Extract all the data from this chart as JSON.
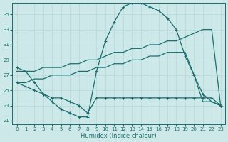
{
  "xlabel": "Humidex (Indice chaleur)",
  "bg_color": "#cde8e8",
  "line_color": "#1a6e6e",
  "grid_color": "#b8d8d8",
  "ylim": [
    20.5,
    36.5
  ],
  "xlim": [
    -0.5,
    23.5
  ],
  "yticks": [
    21,
    23,
    25,
    27,
    29,
    31,
    33,
    35
  ],
  "xticks": [
    0,
    1,
    2,
    3,
    4,
    5,
    6,
    7,
    8,
    9,
    10,
    11,
    12,
    13,
    14,
    15,
    16,
    17,
    18,
    19,
    20,
    21,
    22,
    23
  ],
  "line1_x": [
    0,
    1,
    2,
    3,
    4,
    5,
    6,
    7,
    8,
    9,
    10,
    11,
    12,
    13,
    14,
    15,
    16,
    17,
    18,
    19,
    20,
    21,
    22,
    23
  ],
  "line1_y": [
    28.0,
    27.5,
    26.0,
    24.5,
    23.5,
    22.5,
    22.0,
    21.5,
    21.5,
    27.5,
    31.5,
    34.0,
    36.0,
    36.5,
    36.5,
    36.0,
    35.5,
    34.5,
    33.0,
    29.5,
    27.0,
    24.5,
    23.5,
    23.0
  ],
  "line2_x": [
    0,
    1,
    2,
    3,
    4,
    5,
    6,
    7,
    8,
    9,
    10,
    11,
    12,
    13,
    14,
    15,
    16,
    17,
    18,
    19,
    20,
    21,
    22,
    23
  ],
  "line2_y": [
    27.5,
    27.5,
    27.5,
    28.0,
    28.0,
    28.0,
    28.5,
    28.5,
    29.0,
    29.0,
    29.5,
    30.0,
    30.0,
    30.5,
    30.5,
    31.0,
    31.0,
    31.5,
    31.5,
    32.0,
    32.5,
    33.0,
    33.0,
    23.0
  ],
  "line3_x": [
    0,
    1,
    2,
    3,
    4,
    5,
    6,
    7,
    8,
    9,
    10,
    11,
    12,
    13,
    14,
    15,
    16,
    17,
    18,
    19,
    20,
    21,
    22,
    23
  ],
  "line3_y": [
    26.0,
    26.0,
    26.5,
    26.5,
    27.0,
    27.0,
    27.0,
    27.5,
    27.5,
    28.0,
    28.0,
    28.5,
    28.5,
    29.0,
    29.0,
    29.5,
    29.5,
    30.0,
    30.0,
    30.0,
    27.0,
    23.5,
    23.5,
    23.0
  ],
  "line4_x": [
    0,
    1,
    2,
    3,
    4,
    5,
    6,
    7,
    8,
    9,
    10,
    11,
    12,
    13,
    14,
    15,
    16,
    17,
    18,
    19,
    20,
    21,
    22,
    23
  ],
  "line4_y": [
    26.0,
    25.5,
    25.0,
    24.5,
    24.0,
    24.0,
    23.5,
    23.0,
    22.0,
    24.0,
    24.0,
    24.0,
    24.0,
    24.0,
    24.0,
    24.0,
    24.0,
    24.0,
    24.0,
    24.0,
    24.0,
    24.0,
    24.0,
    23.0
  ]
}
